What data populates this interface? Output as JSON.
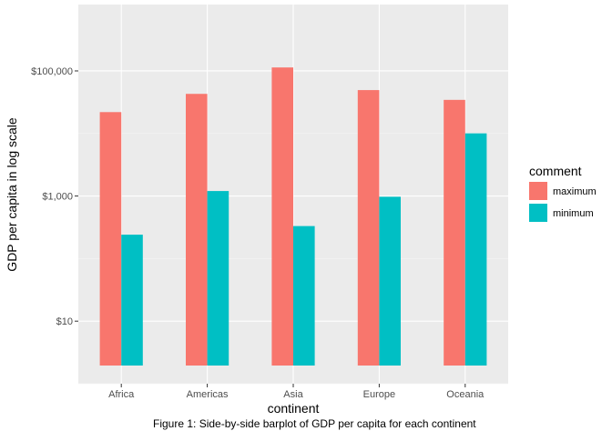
{
  "chart_data": {
    "type": "bar",
    "title": "",
    "xlabel": "continent",
    "ylabel": "GDP per capita in log scale",
    "y_scale": "log10",
    "ylim": [
      1,
      1150000
    ],
    "y_ticks": [
      {
        "value": 10,
        "label": "$10"
      },
      {
        "value": 1000,
        "label": "$1,000"
      },
      {
        "value": 100000,
        "label": "$100,000"
      }
    ],
    "categories": [
      "Africa",
      "Americas",
      "Asia",
      "Europe",
      "Oceania"
    ],
    "legend": {
      "title": "comment",
      "placement": "right"
    },
    "series": [
      {
        "name": "maximum",
        "color": "#F8766D",
        "values": [
          21950,
          42952,
          113523,
          49357,
          34435
        ]
      },
      {
        "name": "minimum",
        "color": "#00BFC4",
        "values": [
          241,
          1202,
          331,
          974,
          10040
        ]
      }
    ],
    "grid": true,
    "caption": "Figure 1: Side-by-side barplot of GDP per capita for each continent"
  }
}
